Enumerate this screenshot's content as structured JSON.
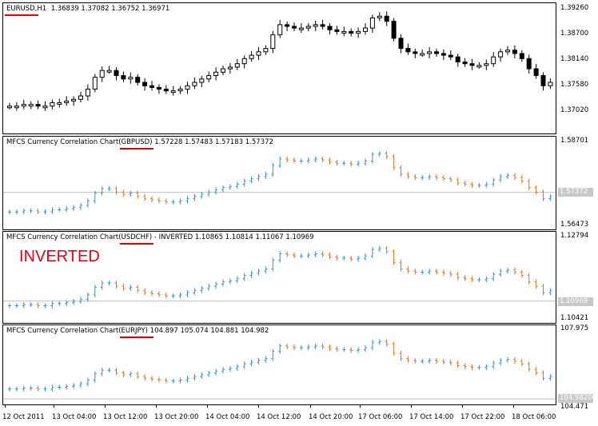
{
  "main_chart": {
    "symbol": "EURUSD,H1",
    "ohlc": "1.36839 1.37082 1.36752 1.36971",
    "price_labels": [
      "1.39260",
      "1.38700",
      "1.38140",
      "1.37580",
      "1.37020"
    ]
  },
  "panes": [
    {
      "title_prefix": "MFCS Currency Correlation Chart",
      "symbol": "(GBPUSD)",
      "suffix": "1.57228 1.57483 1.57183 1.57372",
      "price_labels": [
        "1.58701",
        "1.56473"
      ],
      "current": "1.57372"
    },
    {
      "title_prefix": "MFCS Currency Correlation Chart",
      "symbol": "(USDCHF)",
      "suffix": "- INVERTED 1.10865 1.10814 1.11067 1.10969",
      "annotation": "INVERTED",
      "price_labels": [
        "1.12794",
        "1.10421"
      ],
      "current": "1.10969"
    },
    {
      "title_prefix": "MFCS Currency Correlation Chart",
      "symbol": "(EURJPY)",
      "suffix": "104.897 105.074 104.881 104.982",
      "price_labels": [
        "107.975",
        "104.471"
      ],
      "current": "104.98200"
    }
  ],
  "time_axis": [
    "12 Oct 2011",
    "13 Oct 04:00",
    "13 Oct 12:00",
    "13 Oct 20:00",
    "14 Oct 04:00",
    "14 Oct 12:00",
    "14 Oct 20:00",
    "17 Oct 06:00",
    "17 Oct 14:00",
    "17 Oct 22:00",
    "18 Oct 06:00"
  ],
  "colors": {
    "bull": "#3b8fc4",
    "bear": "#d07a2e",
    "underline": "#e00000",
    "annotation": "#e3001b",
    "grid": "#c0c0c0"
  }
}
